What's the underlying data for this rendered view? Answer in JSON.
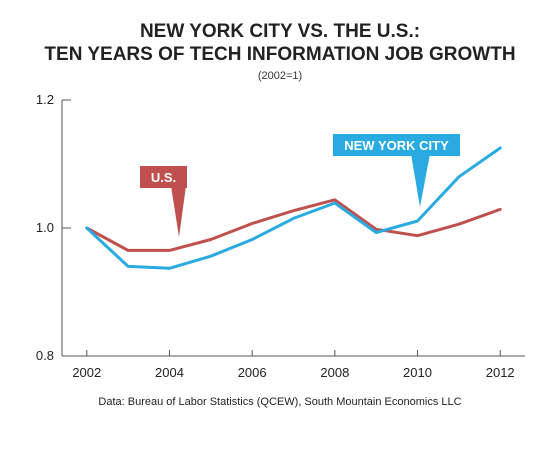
{
  "chart_data": {
    "type": "line",
    "title_line1": "NEW YORK CITY VS. THE U.S.:",
    "title_line2": "TEN YEARS OF TECH INFORMATION JOB GROWTH",
    "subtitle": "(2002=1)",
    "xlabel": "",
    "ylabel": "",
    "x": [
      2002,
      2003,
      2004,
      2005,
      2006,
      2007,
      2008,
      2009,
      2010,
      2011,
      2012
    ],
    "x_ticks": [
      2002,
      2004,
      2006,
      2008,
      2010,
      2012
    ],
    "y_ticks": [
      0.8,
      1.0,
      1.2
    ],
    "y_tick_labels": [
      "0.8",
      "1.0",
      "1.2"
    ],
    "ylim": [
      0.8,
      1.2
    ],
    "xlim": [
      2001.4,
      2012.6
    ],
    "grid": false,
    "series": [
      {
        "name": "U.S.",
        "color": "#c0504d",
        "values": [
          1.0,
          0.965,
          0.965,
          0.982,
          1.007,
          1.027,
          1.044,
          0.998,
          0.988,
          1.006,
          1.029
        ]
      },
      {
        "name": "NEW YORK CITY",
        "color": "#29abe2",
        "values": [
          1.0,
          0.94,
          0.937,
          0.956,
          0.982,
          1.015,
          1.039,
          0.993,
          1.011,
          1.08,
          1.125
        ]
      }
    ],
    "source": "Data: Bureau of Labor Statistics (QCEW), South Mountain Economics LLC"
  }
}
